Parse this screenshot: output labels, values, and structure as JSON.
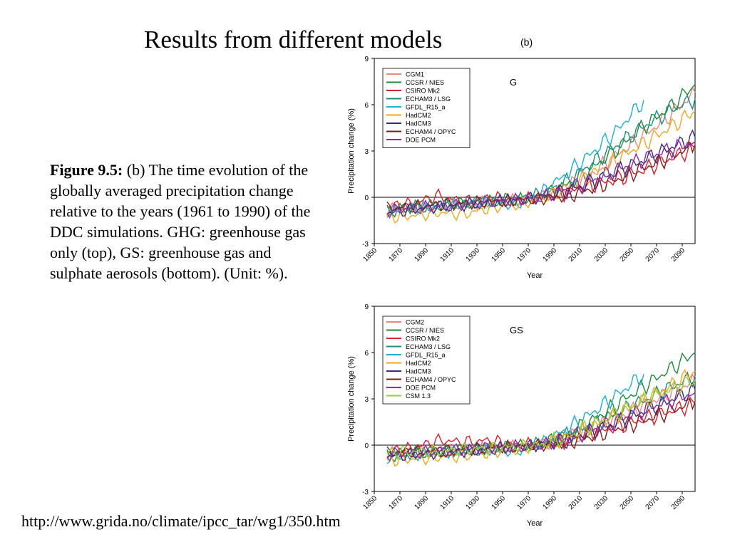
{
  "slide": {
    "title": "Results from different models",
    "panel_tag": "(b)",
    "caption_label": "Figure 9.5:",
    "caption_text": " (b) The time evolution of the globally averaged precipitation change relative to the years (1961 to 1990) of the DDC simulations. GHG: greenhouse gas only (top), GS: greenhouse gas and sulphate aerosols (bottom). (Unit: %).",
    "source_url": "http://www.grida.no/climate/ipcc_tar/wg1/350.htm"
  },
  "chart_data": [
    {
      "type": "line",
      "panel_label": "G",
      "xlabel": "Year",
      "ylabel": "Precipitation change (%)",
      "xlim": [
        1850,
        2100
      ],
      "ylim": [
        -3,
        9
      ],
      "xticks": [
        "1850",
        "1870",
        "1890",
        "1910",
        "1930",
        "1950",
        "1970",
        "1990",
        "2010",
        "2030",
        "2050",
        "2070",
        "2090"
      ],
      "yticks": [
        "-3",
        "0",
        "3",
        "6",
        "9"
      ],
      "legend_position": "top-left",
      "series": [
        {
          "name": "CGM1",
          "color": "#f08878",
          "x": [
            1860,
            1880,
            1900,
            1920,
            1940,
            1960,
            1980,
            2000,
            2020,
            2040,
            2060,
            2080,
            2100
          ],
          "values": [
            -0.8,
            -0.6,
            -0.5,
            -0.5,
            -0.3,
            -0.2,
            0.0,
            0.6,
            1.6,
            2.8,
            4.0,
            5.3,
            6.8
          ]
        },
        {
          "name": "CCSR / NIES",
          "color": "#1a8c3c",
          "x": [
            1860,
            1880,
            1900,
            1920,
            1940,
            1960,
            1980,
            2000,
            2020,
            2040,
            2060,
            2080,
            2100
          ],
          "values": [
            -0.9,
            -0.7,
            -0.5,
            -0.4,
            -0.3,
            -0.2,
            0.1,
            0.8,
            1.9,
            3.2,
            4.6,
            5.8,
            7.3
          ]
        },
        {
          "name": "CSIRO Mk2",
          "color": "#e0202a",
          "x": [
            1860,
            1880,
            1900,
            1920,
            1940,
            1960,
            1980,
            2000,
            2020,
            2040,
            2060,
            2080,
            2100
          ],
          "values": [
            -0.6,
            -0.4,
            0.1,
            -0.3,
            0.0,
            -0.2,
            0.0,
            0.3,
            0.8,
            1.2,
            1.8,
            2.5,
            3.2
          ]
        },
        {
          "name": "ECHAM3 / LSG",
          "color": "#1a8f7f",
          "x": [
            1860,
            1880,
            1900,
            1920,
            1940,
            1960,
            1980,
            2000,
            2020,
            2040,
            2060,
            2080,
            2100
          ],
          "values": [
            -0.8,
            -0.6,
            -0.5,
            -0.4,
            -0.2,
            -0.1,
            0.2,
            1.0,
            2.2,
            3.4,
            4.6,
            5.6,
            6.4
          ]
        },
        {
          "name": "GFDL_R15_a",
          "color": "#1ab0d8",
          "x": [
            1860,
            1880,
            1900,
            1920,
            1940,
            1960,
            1980,
            2000,
            2020,
            2040,
            2060
          ],
          "values": [
            -0.9,
            -0.7,
            -0.6,
            -0.4,
            -0.3,
            -0.5,
            0.3,
            1.5,
            2.9,
            4.4,
            6.3
          ]
        },
        {
          "name": "HadCM2",
          "color": "#f0a81c",
          "x": [
            1860,
            1880,
            1900,
            1920,
            1940,
            1960,
            1980,
            2000,
            2020,
            2040,
            2060,
            2080,
            2100
          ],
          "values": [
            -1.3,
            -1.2,
            -1.0,
            -1.1,
            -0.7,
            -0.5,
            -0.1,
            0.6,
            1.5,
            2.5,
            3.5,
            4.5,
            5.6
          ]
        },
        {
          "name": "HadCM3",
          "color": "#3a2a8a",
          "x": [
            1860,
            1880,
            1900,
            1920,
            1940,
            1960,
            1980,
            2000,
            2020,
            2040,
            2060,
            2080,
            2100
          ],
          "values": [
            -1.0,
            -0.8,
            -0.6,
            -0.5,
            -0.3,
            -0.2,
            0.0,
            0.4,
            1.0,
            1.7,
            2.4,
            3.2,
            3.9
          ]
        },
        {
          "name": "ECHAM4 / OPYC",
          "color": "#8a1a1a",
          "x": [
            1860,
            1880,
            1900,
            1920,
            1940,
            1960,
            1980,
            2000,
            2020,
            2040,
            2060,
            2080,
            2100
          ],
          "values": [
            -0.7,
            -0.6,
            -0.5,
            -0.4,
            -0.3,
            -0.2,
            -0.1,
            0.1,
            0.6,
            1.2,
            1.9,
            2.6,
            3.4
          ]
        },
        {
          "name": "DOE PCM",
          "color": "#8a2aa8",
          "x": [
            1860,
            1880,
            1900,
            1920,
            1940,
            1960,
            1980,
            2000,
            2020,
            2040,
            2060,
            2080,
            2100
          ],
          "values": [
            -0.9,
            -0.7,
            -0.6,
            -0.5,
            -0.3,
            -0.2,
            0.0,
            0.5,
            1.1,
            1.8,
            2.5,
            3.1,
            3.6
          ]
        }
      ]
    },
    {
      "type": "line",
      "panel_label": "GS",
      "xlabel": "Year",
      "ylabel": "Precipitation change (%)",
      "xlim": [
        1850,
        2100
      ],
      "ylim": [
        -3,
        9
      ],
      "xticks": [
        "1850",
        "1870",
        "1890",
        "1910",
        "1930",
        "1950",
        "1970",
        "1990",
        "2010",
        "2030",
        "2050",
        "2070",
        "2090"
      ],
      "yticks": [
        "-3",
        "0",
        "3",
        "6",
        "9"
      ],
      "legend_position": "top-left",
      "series": [
        {
          "name": "CGM2",
          "color": "#f08878",
          "x": [
            1860,
            1880,
            1900,
            1920,
            1940,
            1960,
            1980,
            2000,
            2020,
            2040,
            2060,
            2080,
            2100
          ],
          "values": [
            -0.5,
            -0.4,
            -0.3,
            -0.3,
            -0.2,
            -0.1,
            0.0,
            0.4,
            1.0,
            1.8,
            2.6,
            3.4,
            4.2
          ]
        },
        {
          "name": "CCSR / NIES",
          "color": "#1a8c3c",
          "x": [
            1860,
            1880,
            1900,
            1920,
            1940,
            1960,
            1980,
            2000,
            2020,
            2040,
            2060,
            2080,
            2100
          ],
          "values": [
            -0.7,
            -0.5,
            -0.4,
            -0.3,
            -0.2,
            -0.1,
            0.1,
            0.7,
            1.6,
            2.7,
            3.8,
            4.9,
            6.0
          ]
        },
        {
          "name": "CSIRO Mk2",
          "color": "#e0202a",
          "x": [
            1860,
            1880,
            1900,
            1920,
            1940,
            1960,
            1980,
            2000,
            2020,
            2040,
            2060,
            2080,
            2100
          ],
          "values": [
            -0.4,
            -0.2,
            0.3,
            0.2,
            0.3,
            0.0,
            0.1,
            0.3,
            0.8,
            1.2,
            1.7,
            2.2,
            2.7
          ]
        },
        {
          "name": "ECHAM3 / LSG",
          "color": "#1a8f7f",
          "x": [
            1860,
            1880,
            1900,
            1920,
            1940,
            1960,
            1980,
            2000,
            2020,
            2040,
            2060,
            2080,
            2100
          ],
          "values": [
            -0.6,
            -0.5,
            -0.4,
            -0.3,
            -0.2,
            -0.1,
            0.1,
            0.6,
            1.3,
            2.1,
            2.9,
            3.7,
            4.5
          ]
        },
        {
          "name": "GFDL_R15_a",
          "color": "#1ab0d8",
          "x": [
            1860,
            1880,
            1900,
            1920,
            1940,
            1960,
            1980,
            2000,
            2020,
            2040,
            2060
          ],
          "values": [
            -0.8,
            -0.6,
            -0.5,
            -0.4,
            -0.3,
            -0.4,
            0.1,
            1.0,
            2.1,
            3.3,
            4.6
          ]
        },
        {
          "name": "HadCM2",
          "color": "#f0a81c",
          "x": [
            1860,
            1880,
            1900,
            1920,
            1940,
            1960,
            1980,
            2000,
            2020,
            2040,
            2060,
            2080,
            2100
          ],
          "values": [
            -1.0,
            -0.9,
            -0.8,
            -0.7,
            -0.5,
            -0.3,
            0.0,
            0.5,
            1.2,
            2.0,
            2.9,
            3.8,
            4.8
          ]
        },
        {
          "name": "HadCM3",
          "color": "#3a2a8a",
          "x": [
            1860,
            1880,
            1900,
            1920,
            1940,
            1960,
            1980,
            2000,
            2020,
            2040,
            2060,
            2080,
            2100
          ],
          "values": [
            -0.7,
            -0.6,
            -0.5,
            -0.4,
            -0.3,
            -0.1,
            0.0,
            0.3,
            0.9,
            1.5,
            2.2,
            2.9,
            3.6
          ]
        },
        {
          "name": "ECHAM4 / OPYC",
          "color": "#8a1a1a",
          "x": [
            1860,
            1880,
            1900,
            1920,
            1940,
            1960,
            1980,
            2000,
            2020,
            2040,
            2060,
            2080,
            2100
          ],
          "values": [
            -0.5,
            -0.4,
            -0.4,
            -0.3,
            -0.2,
            -0.1,
            0.0,
            0.2,
            0.6,
            1.1,
            1.6,
            2.2,
            2.8
          ]
        },
        {
          "name": "DOE PCM",
          "color": "#8a2aa8",
          "x": [
            1860,
            1880,
            1900,
            1920,
            1940,
            1960,
            1980,
            2000,
            2020,
            2040,
            2060,
            2080,
            2100
          ],
          "values": [
            -0.6,
            -0.5,
            -0.4,
            -0.3,
            -0.2,
            -0.1,
            0.0,
            0.4,
            1.0,
            1.6,
            2.3,
            2.9,
            3.4
          ]
        },
        {
          "name": "CSM 1.3",
          "color": "#9acd32",
          "x": [
            1860,
            1880,
            1900,
            1920,
            1940,
            1960,
            1980,
            2000,
            2020,
            2040,
            2060,
            2080,
            2100
          ],
          "values": [
            -0.5,
            -0.4,
            -0.4,
            -0.3,
            -0.2,
            -0.1,
            0.0,
            0.5,
            1.3,
            2.1,
            2.9,
            3.6,
            4.2
          ]
        }
      ]
    }
  ]
}
